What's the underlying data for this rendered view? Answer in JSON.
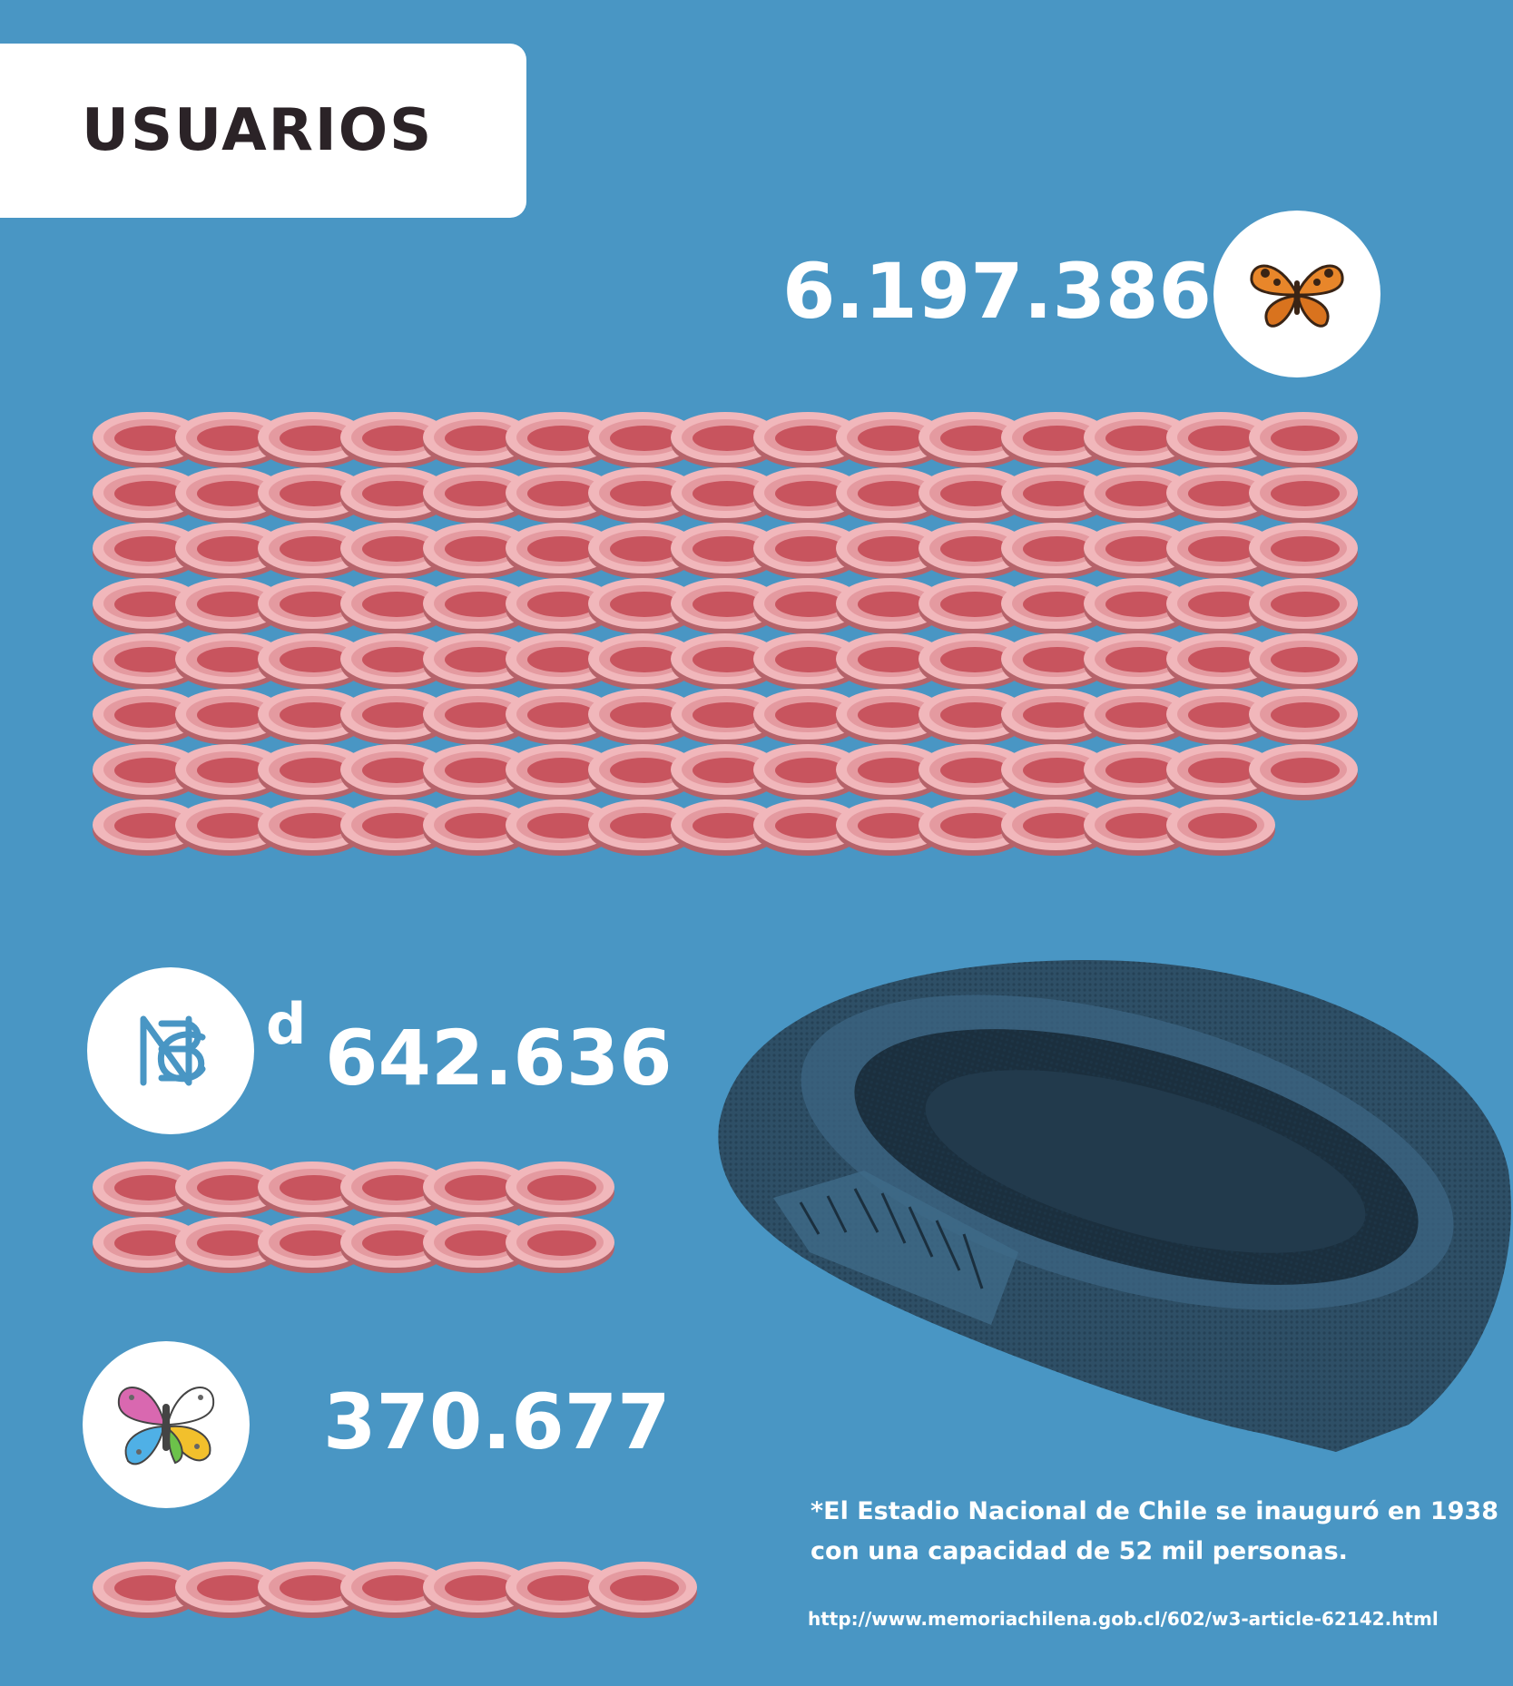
{
  "title": "USUARIOS",
  "groups": [
    {
      "count": "6.197.386",
      "icon": "butterfly-orange-icon",
      "stadium_rows": [
        15,
        15,
        15,
        15,
        15,
        15,
        15,
        14
      ]
    },
    {
      "count": "642.636",
      "prefix": "d",
      "icon": "monogram-logo-icon",
      "stadium_rows": [
        6,
        6
      ]
    },
    {
      "count": "370.677",
      "icon": "butterfly-colored-icon",
      "stadium_rows": [
        7
      ]
    }
  ],
  "footnote": "*El Estadio Nacional de Chile se inauguró en 1938 con una capacidad de 52 mil personas.",
  "source_url": "http://www.memoriachilena.gob.cl/602/w3-article-62142.html",
  "colors": {
    "background": "#4996c4",
    "token_fill": "#c8545e",
    "token_rim": "#f1b7bb",
    "stadium": "#2e4f66",
    "title_text": "#2b2327"
  }
}
